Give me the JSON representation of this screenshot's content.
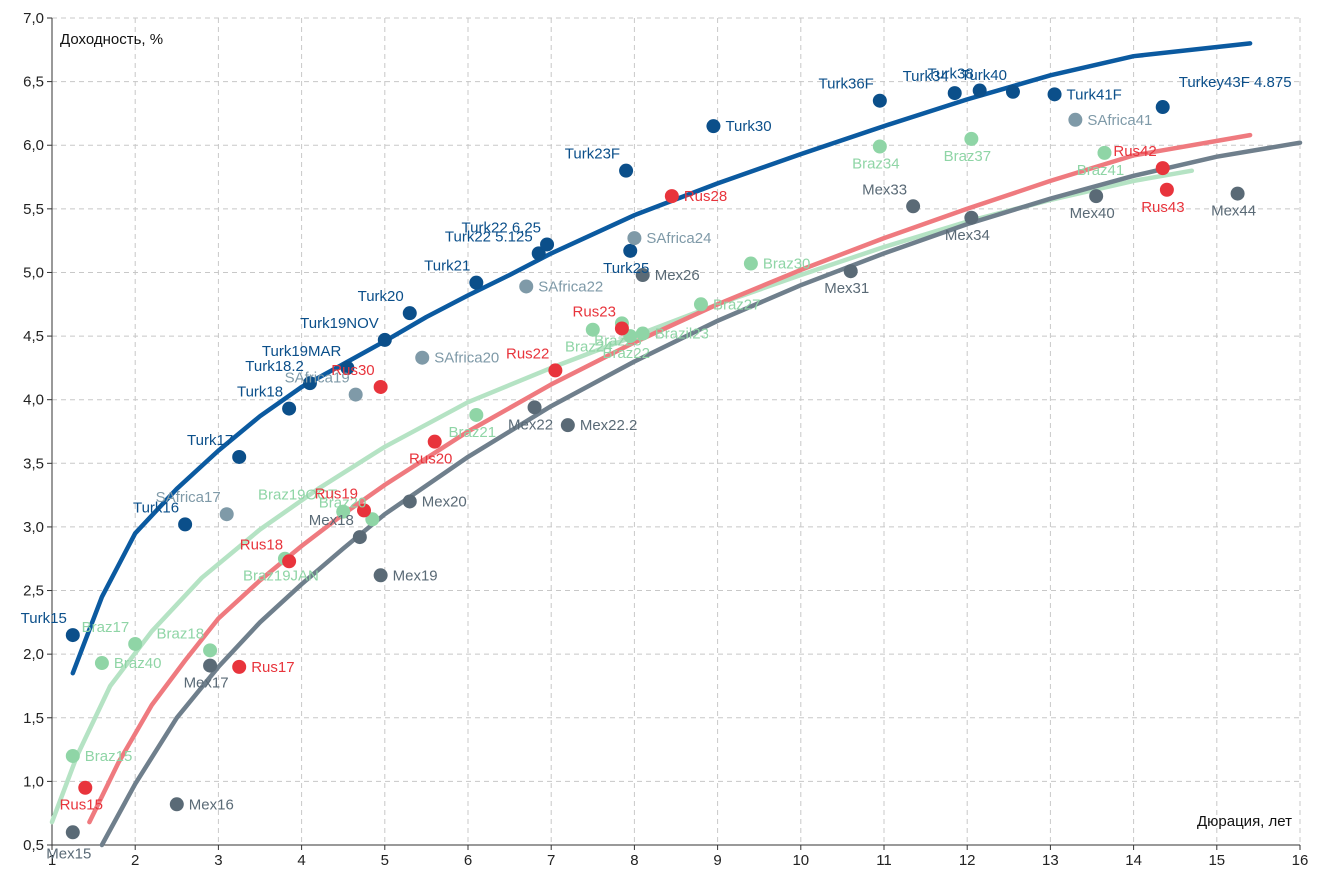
{
  "chart_data": {
    "type": "scatter",
    "xlabel": "Дюрация, лет",
    "ylabel": "Доходность, %",
    "xlim": [
      1,
      16
    ],
    "ylim": [
      0.5,
      7.0
    ],
    "x_ticks": [
      1,
      2,
      3,
      4,
      5,
      6,
      7,
      8,
      9,
      10,
      11,
      12,
      13,
      14,
      15,
      16
    ],
    "y_ticks": [
      0.5,
      1.0,
      1.5,
      2.0,
      2.5,
      3.0,
      3.5,
      4.0,
      4.5,
      5.0,
      5.5,
      6.0,
      6.5,
      7.0
    ],
    "x_tick_labels": [
      "1",
      "2",
      "3",
      "4",
      "5",
      "6",
      "7",
      "8",
      "9",
      "10",
      "11",
      "12",
      "13",
      "14",
      "15",
      "16"
    ],
    "y_tick_labels": [
      "0,5",
      "1,0",
      "1,5",
      "2,0",
      "2,5",
      "3,0",
      "3,5",
      "4,0",
      "4,5",
      "5,0",
      "5,5",
      "6,0",
      "6,5",
      "7,0"
    ],
    "grid": true,
    "series": [
      {
        "key": "turk",
        "color": "#0b4f8a",
        "label_color": "#0b4f8a",
        "curve_color": "#0b5aa0",
        "curve": [
          [
            1.25,
            1.85
          ],
          [
            1.6,
            2.45
          ],
          [
            2,
            2.95
          ],
          [
            2.5,
            3.3
          ],
          [
            3,
            3.6
          ],
          [
            3.5,
            3.87
          ],
          [
            4,
            4.1
          ],
          [
            4.5,
            4.28
          ],
          [
            5,
            4.46
          ],
          [
            5.5,
            4.65
          ],
          [
            6,
            4.82
          ],
          [
            6.5,
            4.98
          ],
          [
            7,
            5.15
          ],
          [
            7.5,
            5.3
          ],
          [
            8,
            5.45
          ],
          [
            9,
            5.7
          ],
          [
            10,
            5.93
          ],
          [
            11,
            6.15
          ],
          [
            12,
            6.36
          ],
          [
            13,
            6.55
          ],
          [
            14,
            6.7
          ],
          [
            15.4,
            6.8
          ]
        ],
        "points": [
          {
            "x": 1.25,
            "y": 2.15,
            "label": "Turk15"
          },
          {
            "x": 2.6,
            "y": 3.02,
            "label": "Turk16"
          },
          {
            "x": 3.25,
            "y": 3.55,
            "label": "Turk17"
          },
          {
            "x": 3.85,
            "y": 3.93,
            "label": "Turk18"
          },
          {
            "x": 4.1,
            "y": 4.13,
            "label": "Turk18.2"
          },
          {
            "x": 4.55,
            "y": 4.25,
            "label": "Turk19MAR"
          },
          {
            "x": 5.0,
            "y": 4.47,
            "label": "Turk19NOV"
          },
          {
            "x": 5.3,
            "y": 4.68,
            "label": "Turk20"
          },
          {
            "x": 6.1,
            "y": 4.92,
            "label": "Turk21"
          },
          {
            "x": 6.85,
            "y": 5.15,
            "label": "Turk22 5.125"
          },
          {
            "x": 6.95,
            "y": 5.22,
            "label": "Turk22 6.25"
          },
          {
            "x": 7.95,
            "y": 5.17,
            "label": "Turk25"
          },
          {
            "x": 7.9,
            "y": 5.8,
            "label": "Turk23F"
          },
          {
            "x": 8.95,
            "y": 6.15,
            "label": "Turk30"
          },
          {
            "x": 10.95,
            "y": 6.35,
            "label": "Turk36F"
          },
          {
            "x": 11.85,
            "y": 6.41,
            "label": "Turk34"
          },
          {
            "x": 12.15,
            "y": 6.43,
            "label": "Turk38"
          },
          {
            "x": 12.55,
            "y": 6.42,
            "label": "Turk40"
          },
          {
            "x": 13.05,
            "y": 6.4,
            "label": "Turk41F"
          },
          {
            "x": 14.35,
            "y": 6.3,
            "label": "Turkey43F 4.875"
          }
        ]
      },
      {
        "key": "safrica",
        "color": "#7f9aa8",
        "label_color": "#7f9aa8",
        "points": [
          {
            "x": 3.1,
            "y": 3.1,
            "label": "SAfrica17"
          },
          {
            "x": 4.65,
            "y": 4.04,
            "label": "SAfrica19"
          },
          {
            "x": 5.45,
            "y": 4.33,
            "label": "SAfrica20"
          },
          {
            "x": 6.7,
            "y": 4.89,
            "label": "SAfrica22"
          },
          {
            "x": 8.0,
            "y": 5.27,
            "label": "SAfrica24"
          },
          {
            "x": 13.3,
            "y": 6.2,
            "label": "SAfrica41"
          }
        ]
      },
      {
        "key": "braz",
        "color": "#8fd5a6",
        "label_color": "#8fd5a6",
        "curve_color": "#b5e3c4",
        "curve": [
          [
            1.0,
            0.68
          ],
          [
            1.3,
            1.2
          ],
          [
            1.7,
            1.75
          ],
          [
            2.2,
            2.18
          ],
          [
            2.8,
            2.6
          ],
          [
            3.5,
            2.98
          ],
          [
            4.2,
            3.3
          ],
          [
            5,
            3.63
          ],
          [
            6,
            3.98
          ],
          [
            7,
            4.25
          ],
          [
            8,
            4.5
          ],
          [
            9,
            4.75
          ],
          [
            10,
            4.98
          ],
          [
            11,
            5.2
          ],
          [
            12,
            5.4
          ],
          [
            13,
            5.57
          ],
          [
            14,
            5.72
          ],
          [
            14.7,
            5.8
          ]
        ],
        "points": [
          {
            "x": 1.25,
            "y": 1.2,
            "label": "Braz15"
          },
          {
            "x": 1.6,
            "y": 1.93,
            "label": "Braz40"
          },
          {
            "x": 2.0,
            "y": 2.08,
            "label": "Braz17"
          },
          {
            "x": 2.9,
            "y": 2.03,
            "label": "Braz18"
          },
          {
            "x": 3.8,
            "y": 2.75,
            "label": "Braz19JAN"
          },
          {
            "x": 4.5,
            "y": 3.12,
            "label": "Braz19OCT"
          },
          {
            "x": 4.85,
            "y": 3.06,
            "label": "Braz20"
          },
          {
            "x": 6.1,
            "y": 3.88,
            "label": "Braz21"
          },
          {
            "x": 7.5,
            "y": 4.55,
            "label": "Braz24"
          },
          {
            "x": 7.85,
            "y": 4.6,
            "label": "Braz25"
          },
          {
            "x": 7.95,
            "y": 4.5,
            "label": "Braz22"
          },
          {
            "x": 8.1,
            "y": 4.52,
            "label": "Brazil23"
          },
          {
            "x": 8.8,
            "y": 4.75,
            "label": "Braz27"
          },
          {
            "x": 9.4,
            "y": 5.07,
            "label": "Braz30"
          },
          {
            "x": 10.95,
            "y": 5.99,
            "label": "Braz34"
          },
          {
            "x": 12.05,
            "y": 6.05,
            "label": "Braz37"
          },
          {
            "x": 13.65,
            "y": 5.94,
            "label": "Braz41"
          }
        ]
      },
      {
        "key": "rus",
        "color": "#e8343c",
        "label_color": "#e8343c",
        "curve_color": "#ef7a7f",
        "curve": [
          [
            1.45,
            0.68
          ],
          [
            1.8,
            1.15
          ],
          [
            2.2,
            1.6
          ],
          [
            2.6,
            1.95
          ],
          [
            3.0,
            2.28
          ],
          [
            3.5,
            2.58
          ],
          [
            4,
            2.85
          ],
          [
            4.5,
            3.1
          ],
          [
            5,
            3.33
          ],
          [
            6,
            3.75
          ],
          [
            7,
            4.12
          ],
          [
            8,
            4.45
          ],
          [
            9,
            4.75
          ],
          [
            10,
            5.02
          ],
          [
            11,
            5.27
          ],
          [
            12,
            5.5
          ],
          [
            13,
            5.72
          ],
          [
            14,
            5.92
          ],
          [
            15.4,
            6.08
          ]
        ],
        "points": [
          {
            "x": 1.4,
            "y": 0.95,
            "label": "Rus15"
          },
          {
            "x": 3.25,
            "y": 1.9,
            "label": "Rus17"
          },
          {
            "x": 3.85,
            "y": 2.73,
            "label": "Rus18"
          },
          {
            "x": 4.75,
            "y": 3.13,
            "label": "Rus19"
          },
          {
            "x": 4.95,
            "y": 4.1,
            "label": "Rus30"
          },
          {
            "x": 5.6,
            "y": 3.67,
            "label": "Rus20"
          },
          {
            "x": 7.05,
            "y": 4.23,
            "label": "Rus22"
          },
          {
            "x": 7.85,
            "y": 4.56,
            "label": "Rus23"
          },
          {
            "x": 8.45,
            "y": 5.6,
            "label": "Rus28"
          },
          {
            "x": 14.35,
            "y": 5.82,
            "label": "Rus42"
          },
          {
            "x": 14.4,
            "y": 5.65,
            "label": "Rus43"
          }
        ]
      },
      {
        "key": "mex",
        "color": "#5a6a76",
        "label_color": "#5a6a76",
        "curve_color": "#6f7f8c",
        "curve": [
          [
            1.6,
            0.5
          ],
          [
            2,
            0.98
          ],
          [
            2.5,
            1.5
          ],
          [
            3,
            1.9
          ],
          [
            3.5,
            2.25
          ],
          [
            4,
            2.55
          ],
          [
            4.5,
            2.83
          ],
          [
            5,
            3.1
          ],
          [
            6,
            3.55
          ],
          [
            7,
            3.95
          ],
          [
            8,
            4.3
          ],
          [
            9,
            4.62
          ],
          [
            10,
            4.9
          ],
          [
            11,
            5.15
          ],
          [
            12,
            5.38
          ],
          [
            13,
            5.58
          ],
          [
            14,
            5.76
          ],
          [
            15,
            5.91
          ],
          [
            16,
            6.02
          ]
        ],
        "points": [
          {
            "x": 1.25,
            "y": 0.6,
            "label": "Mex15"
          },
          {
            "x": 2.5,
            "y": 0.82,
            "label": "Mex16"
          },
          {
            "x": 2.9,
            "y": 1.91,
            "label": "Mex17"
          },
          {
            "x": 4.7,
            "y": 2.92,
            "label": "Mex18"
          },
          {
            "x": 4.95,
            "y": 2.62,
            "label": "Mex19"
          },
          {
            "x": 5.3,
            "y": 3.2,
            "label": "Mex20"
          },
          {
            "x": 6.8,
            "y": 3.94,
            "label": "Mex22"
          },
          {
            "x": 7.2,
            "y": 3.8,
            "label": "Mex22.2"
          },
          {
            "x": 8.1,
            "y": 4.98,
            "label": "Mex26"
          },
          {
            "x": 10.6,
            "y": 5.01,
            "label": "Mex31"
          },
          {
            "x": 11.35,
            "y": 5.52,
            "label": "Mex33"
          },
          {
            "x": 12.05,
            "y": 5.43,
            "label": "Mex34"
          },
          {
            "x": 13.55,
            "y": 5.6,
            "label": "Mex40"
          },
          {
            "x": 15.25,
            "y": 5.62,
            "label": "Mex44"
          }
        ]
      }
    ]
  }
}
